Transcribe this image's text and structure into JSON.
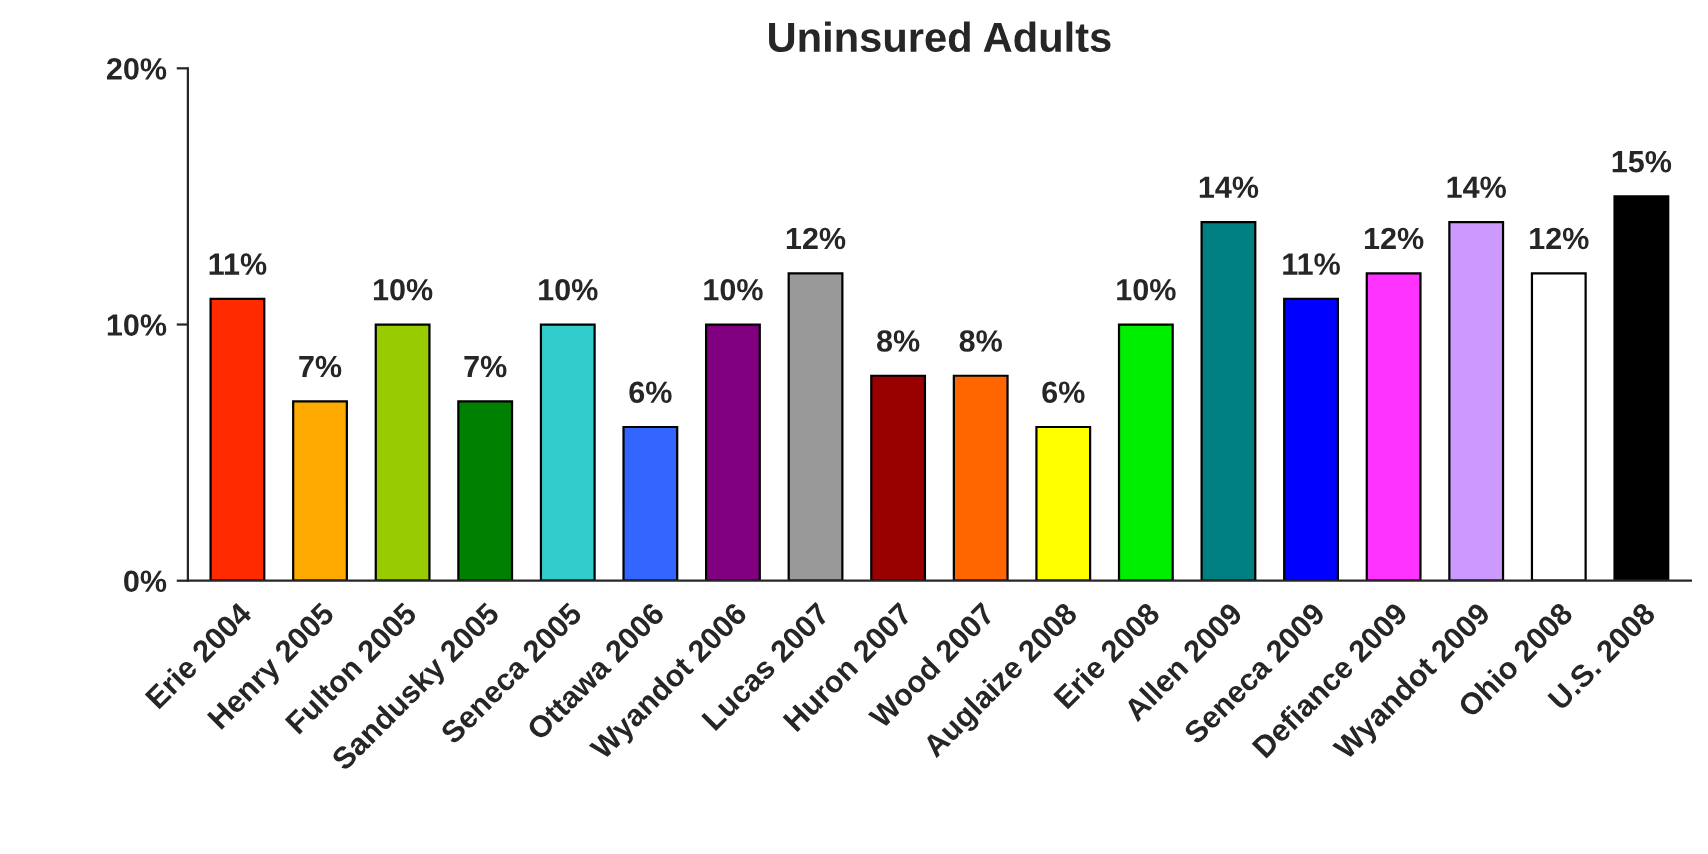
{
  "chart_data": {
    "type": "bar",
    "title": "Uninsured Adults",
    "categories": [
      "Erie 2004",
      "Henry 2005",
      "Fulton 2005",
      "Sandusky 2005",
      "Seneca 2005",
      "Ottawa 2006",
      "Wyandot 2006",
      "Lucas 2007",
      "Huron 2007",
      "Wood 2007",
      "Auglaize 2008",
      "Erie 2008",
      "Allen 2009",
      "Seneca 2009",
      "Defiance 2009",
      "Wyandot 2009",
      "Ohio 2008",
      "U.S. 2008"
    ],
    "values": [
      11,
      7,
      10,
      7,
      10,
      6,
      10,
      12,
      8,
      8,
      6,
      10,
      14,
      11,
      12,
      14,
      12,
      15
    ],
    "value_labels": [
      "11%",
      "7%",
      "10%",
      "7%",
      "10%",
      "6%",
      "10%",
      "12%",
      "8%",
      "8%",
      "6%",
      "10%",
      "14%",
      "11%",
      "12%",
      "14%",
      "12%",
      "15%"
    ],
    "colors": [
      "#ff2a00",
      "#ffaa00",
      "#99cc00",
      "#008000",
      "#33cccc",
      "#3366ff",
      "#800080",
      "#999999",
      "#990000",
      "#ff6600",
      "#ffff00",
      "#00ee00",
      "#008080",
      "#0000ff",
      "#ff33ff",
      "#cc99ff",
      "#ffffff",
      "#000000"
    ],
    "ylim": [
      0,
      20
    ],
    "yticks": [
      {
        "value": 0,
        "label": "0%"
      },
      {
        "value": 10,
        "label": "10%"
      },
      {
        "value": 20,
        "label": "20%"
      }
    ],
    "grid": false
  }
}
